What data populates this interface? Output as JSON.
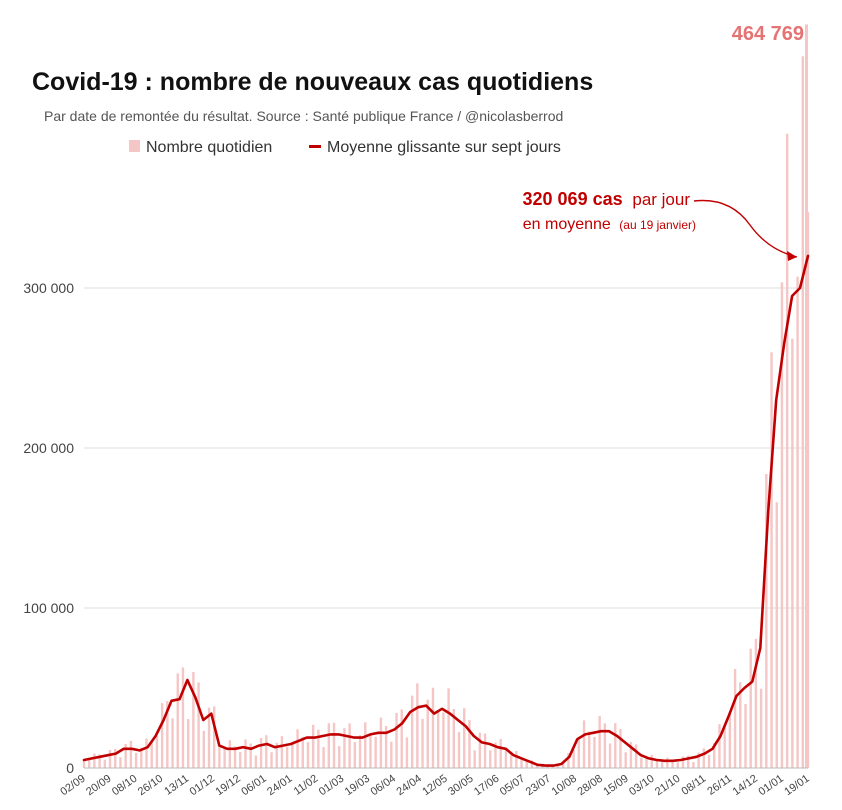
{
  "chart_data": {
    "type": "bar",
    "title": "Covid-19 : nombre de nouveaux cas quotidiens",
    "subtitle": "Par date de remontée du résultat. Source : Santé publique France / @nicolasberrod",
    "legend": {
      "placement": "top-center",
      "daily_label": "Nombre quotidien",
      "average_label": "Moyenne glissante sur sept jours"
    },
    "colors": {
      "daily": "#f5c6c6",
      "average": "#c00000",
      "peak": "#e57373",
      "grid": "#dddddd"
    },
    "ylim": [
      0,
      470000
    ],
    "yticks": [
      {
        "value": 0,
        "label": "0"
      },
      {
        "value": 100000,
        "label": "100 000"
      },
      {
        "value": 200000,
        "label": "200 000"
      },
      {
        "value": 300000,
        "label": "300 000"
      }
    ],
    "xticks": [
      "02/09",
      "20/09",
      "08/10",
      "26/10",
      "13/11",
      "01/12",
      "19/12",
      "06/01",
      "24/01",
      "11/02",
      "01/03",
      "19/03",
      "06/04",
      "24/04",
      "12/05",
      "30/05",
      "17/06",
      "05/07",
      "23/07",
      "10/08",
      "28/08",
      "15/09",
      "03/10",
      "21/10",
      "08/11",
      "26/11",
      "14/12",
      "01/01",
      "19/01"
    ],
    "series": [
      {
        "name": "Moyenne glissante sur sept jours",
        "type": "line",
        "values": [
          5000,
          6000,
          7000,
          8000,
          9000,
          12000,
          12000,
          11000,
          13000,
          20000,
          30000,
          42000,
          43000,
          55000,
          44000,
          30000,
          34000,
          14000,
          12000,
          12000,
          13000,
          12000,
          14000,
          15000,
          13000,
          14000,
          15000,
          17000,
          19000,
          19000,
          20000,
          21000,
          21000,
          20000,
          19000,
          19000,
          21000,
          22000,
          22000,
          24000,
          28000,
          35000,
          38000,
          39000,
          34000,
          37000,
          34000,
          30000,
          26000,
          20000,
          16000,
          15000,
          13000,
          12000,
          8000,
          6000,
          4000,
          2000,
          1500,
          1500,
          2500,
          7000,
          18000,
          21000,
          22000,
          23000,
          23000,
          20000,
          16000,
          12000,
          8000,
          6000,
          5000,
          4500,
          4500,
          5000,
          6000,
          7000,
          9000,
          12000,
          20000,
          32000,
          45000,
          50000,
          54000,
          75000,
          160000,
          230000,
          265000,
          295000,
          300000,
          320069
        ]
      }
    ],
    "peak_label": {
      "value": 464769,
      "text": "464 769"
    },
    "annotation": {
      "bold": "320 069 cas",
      "rest": "par jour",
      "line2": "en moyenne",
      "date": "(au 19 janvier)",
      "value": 320069
    }
  }
}
